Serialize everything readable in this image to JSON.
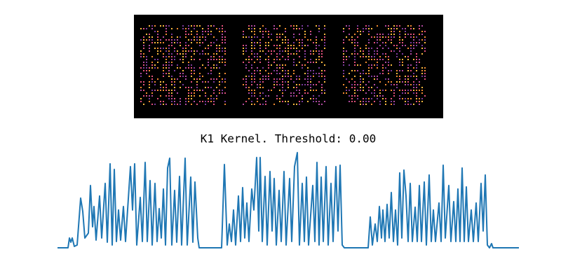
{
  "chart_data": {
    "type": "line",
    "title": "K1 Kernel. Threshold: 0.00",
    "color": "#1f77b4",
    "xlim": [
      0,
      658
    ],
    "ylim": [
      0,
      136
    ],
    "x": [
      0,
      15,
      17,
      19,
      21,
      24,
      28,
      33,
      36,
      39,
      44,
      47,
      50,
      52,
      55,
      60,
      63,
      68,
      71,
      75,
      78,
      81,
      84,
      87,
      90,
      94,
      97,
      104,
      107,
      110,
      113,
      118,
      121,
      125,
      128,
      132,
      135,
      139,
      142,
      145,
      148,
      151,
      154,
      157,
      160,
      163,
      167,
      170,
      174,
      177,
      182,
      185,
      190,
      193,
      196,
      200,
      202,
      234,
      238,
      242,
      245,
      248,
      251,
      254,
      258,
      261,
      264,
      267,
      270,
      273,
      277,
      280,
      284,
      287,
      289,
      292,
      296,
      299,
      303,
      306,
      309,
      312,
      316,
      319,
      323,
      326,
      331,
      334,
      338,
      342,
      345,
      349,
      352,
      355,
      358,
      364,
      367,
      370,
      373,
      376,
      379,
      383,
      386,
      390,
      393,
      397,
      400,
      403,
      406,
      409,
      443,
      446,
      449,
      453,
      456,
      459,
      462,
      464,
      467,
      470,
      473,
      476,
      479,
      482,
      485,
      488,
      491,
      494,
      497,
      500,
      503,
      506,
      510,
      513,
      516,
      519,
      523,
      526,
      530,
      533,
      536,
      539,
      544,
      547,
      550,
      553,
      558,
      561,
      565,
      568,
      571,
      574,
      577,
      580,
      583,
      586,
      590,
      593,
      597,
      600,
      604,
      607,
      610,
      613,
      616,
      619,
      621,
      658
    ],
    "values": [
      0,
      0,
      14,
      8,
      14,
      2,
      4,
      71,
      52,
      14,
      21,
      89,
      30,
      59,
      11,
      74,
      14,
      92,
      8,
      120,
      4,
      112,
      9,
      54,
      11,
      59,
      9,
      116,
      54,
      120,
      4,
      72,
      9,
      122,
      9,
      96,
      4,
      92,
      9,
      56,
      14,
      84,
      4,
      114,
      128,
      4,
      82,
      8,
      102,
      4,
      128,
      4,
      101,
      8,
      94,
      14,
      0,
      0,
      119,
      4,
      34,
      9,
      54,
      4,
      74,
      9,
      86,
      14,
      64,
      9,
      84,
      54,
      129,
      24,
      129,
      9,
      102,
      4,
      109,
      24,
      99,
      4,
      82,
      9,
      109,
      4,
      99,
      9,
      116,
      136,
      4,
      92,
      9,
      101,
      4,
      89,
      9,
      122,
      4,
      101,
      9,
      116,
      4,
      92,
      9,
      116,
      24,
      118,
      4,
      0,
      0,
      44,
      4,
      34,
      9,
      59,
      14,
      54,
      9,
      62,
      14,
      79,
      9,
      54,
      4,
      107,
      14,
      111,
      74,
      9,
      92,
      9,
      58,
      9,
      89,
      9,
      94,
      4,
      104,
      9,
      54,
      9,
      64,
      9,
      118,
      14,
      89,
      9,
      66,
      9,
      84,
      9,
      114,
      9,
      87,
      9,
      54,
      9,
      64,
      9,
      92,
      24,
      104,
      4,
      0,
      6,
      0,
      0
    ]
  }
}
